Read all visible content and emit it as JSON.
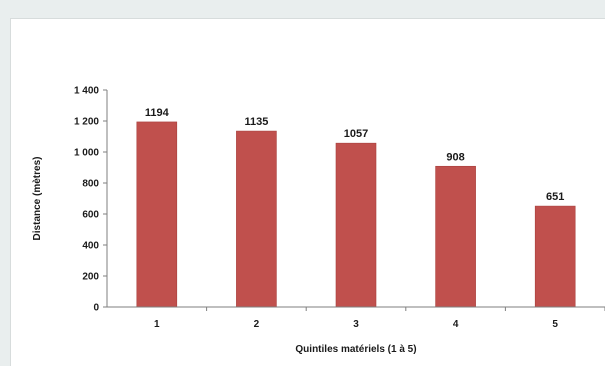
{
  "chart_data": {
    "type": "bar",
    "title": "",
    "xlabel": "Quintiles matériels (1 à 5)",
    "ylabel": "Distance (mètres)",
    "categories": [
      "1",
      "2",
      "3",
      "4",
      "5"
    ],
    "values": [
      1194,
      1135,
      1057,
      908,
      651
    ],
    "data_labels": [
      "1194",
      "1135",
      "1057",
      "908",
      "651"
    ],
    "yticks": [
      0,
      200,
      400,
      600,
      800,
      1000,
      1200,
      1400
    ],
    "ytick_labels": [
      "0",
      "200",
      "400",
      "600",
      "800",
      "1 000",
      "1 200",
      "1 400"
    ],
    "ylim": [
      0,
      1400
    ],
    "grid": false,
    "legend": "none",
    "bar_color": "#c0504d"
  }
}
